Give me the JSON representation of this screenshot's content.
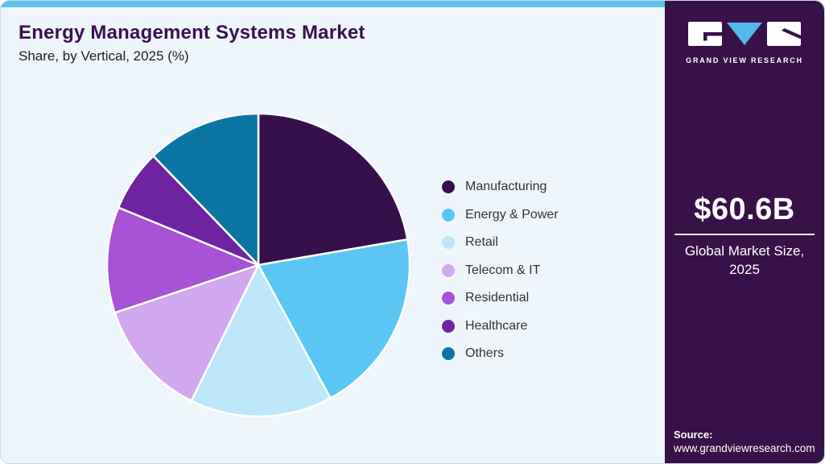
{
  "header": {
    "title": "Energy Management Systems Market",
    "subtitle": "Share, by Vertical, 2025 (%)"
  },
  "chart_data": {
    "type": "pie",
    "title": "Energy Management Systems Market Share, by Vertical, 2025 (%)",
    "unit": "percent",
    "start_angle_deg": 0,
    "direction": "clockwise",
    "legend_position": "right",
    "series": [
      {
        "label": "Manufacturing",
        "value": 22.3,
        "color": "#35104B"
      },
      {
        "label": "Energy & Power",
        "value": 19.8,
        "color": "#5BC6F3"
      },
      {
        "label": "Retail",
        "value": 15.2,
        "color": "#BEE7F9"
      },
      {
        "label": "Telecom & IT",
        "value": 12.6,
        "color": "#D2A9EE"
      },
      {
        "label": "Residential",
        "value": 11.3,
        "color": "#A653D6"
      },
      {
        "label": "Healthcare",
        "value": 6.6,
        "color": "#6E23A0"
      },
      {
        "label": "Others",
        "value": 12.2,
        "color": "#0B76A4"
      }
    ]
  },
  "side_panel": {
    "logo_text": "GRAND VIEW RESEARCH",
    "market_size_value": "$60.6B",
    "market_size_label": "Global Market Size, 2025",
    "source_label": "Source:",
    "source_url": "www.grandviewresearch.com"
  },
  "theme": {
    "top_bar_color": "#5FC3EF",
    "card_background": "#EEF5FB",
    "panel_background": "#371147",
    "title_color": "#3B1053",
    "logo_triangle_color": "#52B9E9",
    "slice_stroke_color": "#FFFFFF"
  }
}
